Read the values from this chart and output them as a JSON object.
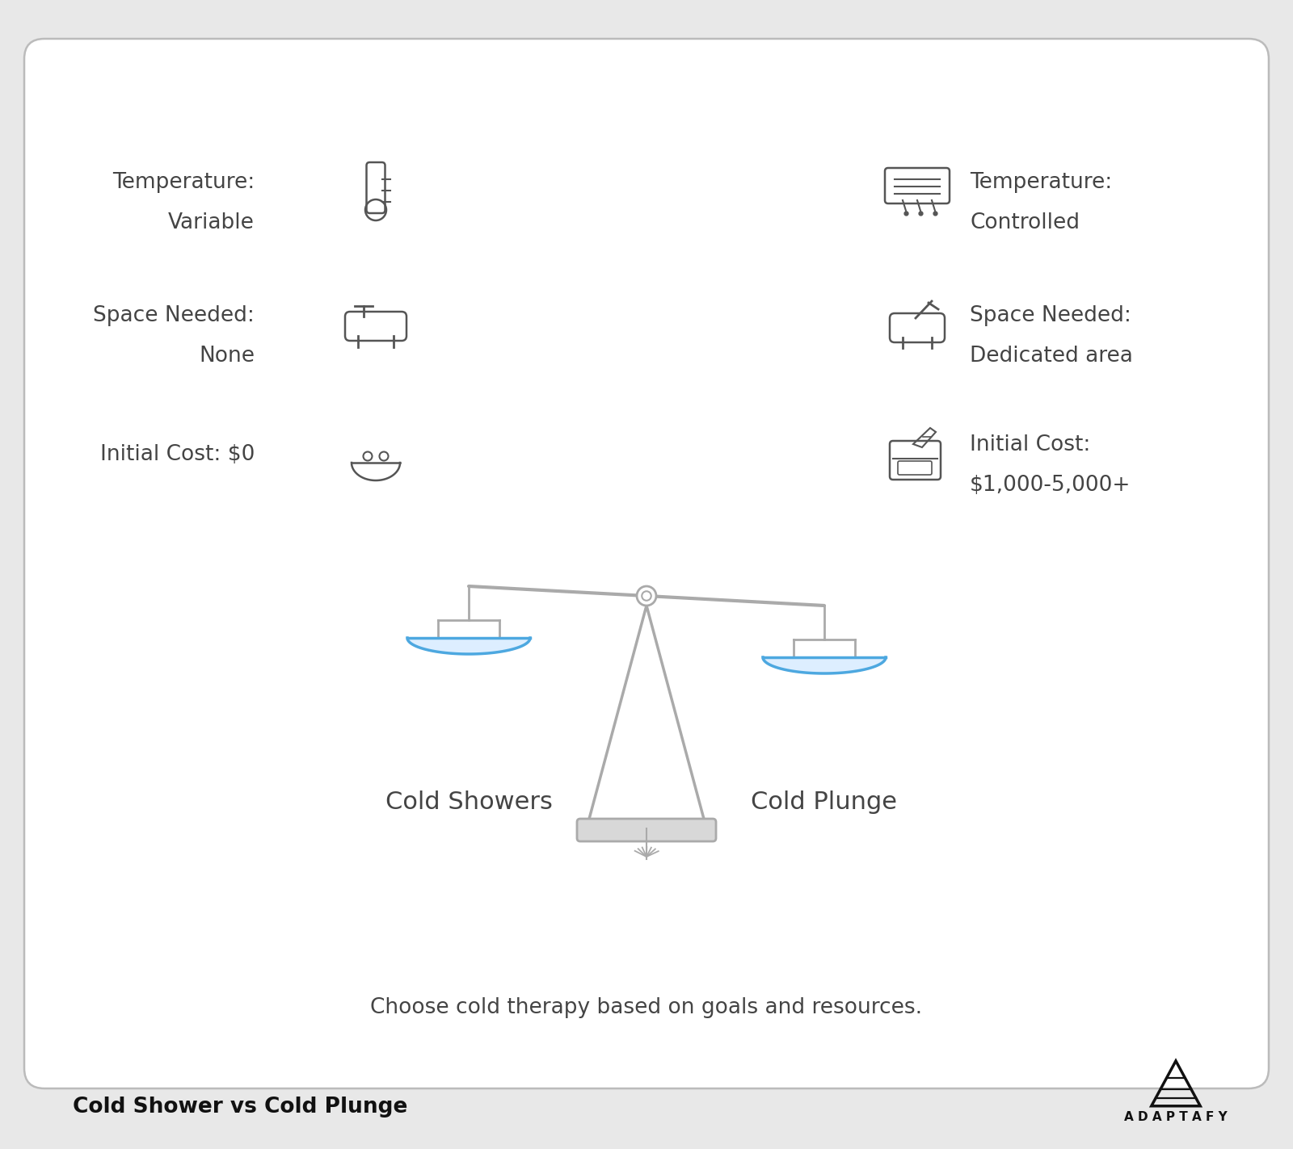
{
  "bg_color": "#e8e8e8",
  "card_bg": "#ffffff",
  "card_border": "#bbbbbb",
  "text_color": "#444444",
  "icon_color": "#555555",
  "scale_color": "#aaaaaa",
  "pan_border_color": "#4da8e0",
  "pan_fill_color": "#ddeeff",
  "title": "Cold Shower vs Cold Plunge",
  "brand": "A D A P T A F Y",
  "bottom_text": "Choose cold therapy based on goals and resources.",
  "left_label": "Cold Showers",
  "right_label": "Cold Plunge",
  "figsize": [
    16.0,
    14.23
  ],
  "dpi": 100
}
